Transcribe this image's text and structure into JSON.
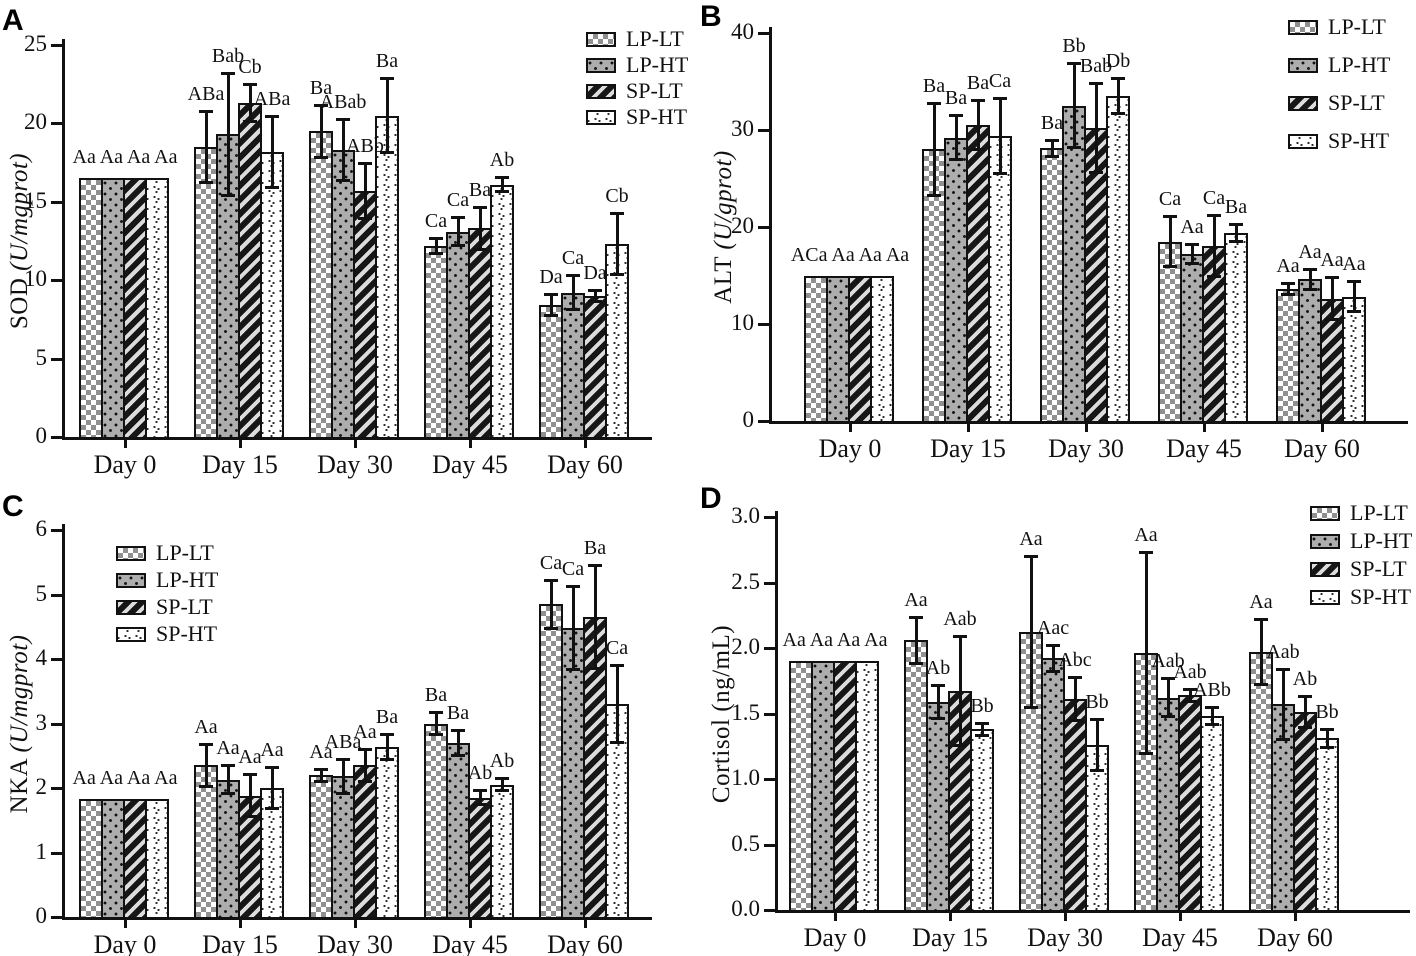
{
  "palette": {
    "outline": "#111111",
    "checker_gray": "#909090",
    "dot_fill_gray": "#adadad",
    "stripe_light": "#dcdcdc",
    "stripe_dark": "#161616",
    "background": "#ffffff"
  },
  "chart_data": [
    {
      "panel": "A",
      "type": "bar",
      "ylabel": "SOD",
      "ylabel_unit": "(U/mgprot)",
      "ylabel_unit_italic": true,
      "ylim": [
        0,
        25
      ],
      "yticks": [
        0,
        5,
        10,
        15,
        20,
        25
      ],
      "ytick_labels": [
        "0",
        "5",
        "10",
        "15",
        "20",
        "25"
      ],
      "categories": [
        "Day 0",
        "Day 15",
        "Day 30",
        "Day 45",
        "Day 60"
      ],
      "legend": [
        "LP-LT",
        "LP-HT",
        "SP-LT",
        "SP-HT"
      ],
      "legend_position": "top-right-inside",
      "grid": false,
      "error_bars": "capped, symmetric",
      "series": [
        {
          "name": "LP-LT",
          "pattern": "checker",
          "values": [
            16.5,
            18.5,
            19.5,
            12.2,
            8.4
          ],
          "errors": [
            0,
            2.3,
            1.7,
            0.5,
            0.7
          ],
          "sig_labels": [
            "Aa",
            "ABa",
            "Ba",
            "Ca",
            "Da"
          ]
        },
        {
          "name": "LP-HT",
          "pattern": "dots",
          "values": [
            16.5,
            19.3,
            18.3,
            13.1,
            9.2
          ],
          "errors": [
            0,
            3.9,
            2.0,
            0.9,
            1.1
          ],
          "sig_labels": [
            "Aa",
            "Bab",
            "ABab",
            "Ca",
            "Ca"
          ]
        },
        {
          "name": "SP-LT",
          "pattern": "stripes",
          "values": [
            16.5,
            21.3,
            15.7,
            13.3,
            9.0
          ],
          "errors": [
            0,
            1.2,
            1.8,
            1.4,
            0.4
          ],
          "sig_labels": [
            "Aa",
            "Cb",
            "ABb",
            "Ba",
            "Da"
          ]
        },
        {
          "name": "SP-HT",
          "pattern": "speckle",
          "values": [
            16.5,
            18.2,
            20.5,
            16.1,
            12.3
          ],
          "errors": [
            0,
            2.3,
            2.4,
            0.5,
            2.0
          ],
          "sig_labels": [
            "Aa",
            "ABa",
            "Ba",
            "Ab",
            "Cb"
          ]
        }
      ]
    },
    {
      "panel": "B",
      "type": "bar",
      "ylabel": "ALT",
      "ylabel_unit": "(U/gprot)",
      "ylabel_unit_italic": true,
      "ylim": [
        0,
        40
      ],
      "yticks": [
        0,
        10,
        20,
        30,
        40
      ],
      "ytick_labels": [
        "0",
        "10",
        "20",
        "30",
        "40"
      ],
      "categories": [
        "Day 0",
        "Day 15",
        "Day 30",
        "Day 45",
        "Day 60"
      ],
      "legend": [
        "LP-LT",
        "LP-HT",
        "SP-LT",
        "SP-HT"
      ],
      "legend_position": "top-right-outside",
      "grid": false,
      "error_bars": "capped, symmetric",
      "series": [
        {
          "name": "LP-LT",
          "pattern": "checker",
          "values": [
            14.9,
            28.0,
            28.1,
            18.5,
            13.6
          ],
          "errors": [
            0,
            4.8,
            0.9,
            2.6,
            0.6
          ],
          "sig_labels": [
            "ACa",
            "Ba",
            "Ba",
            "Ca",
            "Aa"
          ]
        },
        {
          "name": "LP-HT",
          "pattern": "dots",
          "values": [
            14.9,
            29.2,
            32.5,
            17.2,
            14.6
          ],
          "errors": [
            0,
            2.3,
            4.4,
            1.0,
            1.1
          ],
          "sig_labels": [
            "Aa",
            "Ba",
            "Bb",
            "Aa",
            "Aa"
          ]
        },
        {
          "name": "SP-LT",
          "pattern": "stripes",
          "values": [
            14.9,
            30.5,
            30.2,
            18.0,
            12.6
          ],
          "errors": [
            0,
            2.6,
            4.6,
            3.2,
            2.2
          ],
          "sig_labels": [
            "Aa",
            "Ba",
            "Bab",
            "Ca",
            "Aa"
          ]
        },
        {
          "name": "SP-HT",
          "pattern": "speckle",
          "values": [
            14.9,
            29.4,
            33.5,
            19.4,
            12.8
          ],
          "errors": [
            0,
            3.9,
            1.9,
            0.9,
            1.6
          ],
          "sig_labels": [
            "Aa",
            "Ca",
            "Db",
            "Ba",
            "Aa"
          ]
        }
      ]
    },
    {
      "panel": "C",
      "type": "bar",
      "ylabel": "NKA",
      "ylabel_unit": "(U/mgprot)",
      "ylabel_unit_italic": true,
      "ylim": [
        0,
        6
      ],
      "yticks": [
        0,
        1,
        2,
        3,
        4,
        5,
        6
      ],
      "ytick_labels": [
        "0",
        "1",
        "2",
        "3",
        "4",
        "5",
        "6"
      ],
      "categories": [
        "Day 0",
        "Day 15",
        "Day 30",
        "Day 45",
        "Day 60"
      ],
      "legend": [
        "LP-LT",
        "LP-HT",
        "SP-LT",
        "SP-HT"
      ],
      "legend_position": "top-left-inside",
      "grid": false,
      "error_bars": "capped, symmetric",
      "series": [
        {
          "name": "LP-LT",
          "pattern": "checker",
          "values": [
            1.83,
            2.35,
            2.2,
            3.0,
            4.85
          ],
          "errors": [
            0,
            0.33,
            0.1,
            0.18,
            0.38
          ],
          "sig_labels": [
            "Aa",
            "Aa",
            "Aa",
            "Ba",
            "Ca"
          ]
        },
        {
          "name": "LP-HT",
          "pattern": "dots",
          "values": [
            1.83,
            2.13,
            2.18,
            2.7,
            4.48
          ],
          "errors": [
            0,
            0.22,
            0.27,
            0.2,
            0.65
          ],
          "sig_labels": [
            "Aa",
            "Aa",
            "ABa",
            "Ba",
            "Ca"
          ]
        },
        {
          "name": "SP-LT",
          "pattern": "stripes",
          "values": [
            1.83,
            1.88,
            2.35,
            1.85,
            4.65
          ],
          "errors": [
            0,
            0.33,
            0.25,
            0.12,
            0.8
          ],
          "sig_labels": [
            "Aa",
            "Aa",
            "Aa",
            "Ab",
            "Ba"
          ]
        },
        {
          "name": "SP-HT",
          "pattern": "speckle",
          "values": [
            1.83,
            2.0,
            2.63,
            2.05,
            3.3
          ],
          "errors": [
            0,
            0.32,
            0.2,
            0.1,
            0.6
          ],
          "sig_labels": [
            "Aa",
            "Aa",
            "Ba",
            "Ab",
            "Ca"
          ]
        }
      ]
    },
    {
      "panel": "D",
      "type": "bar",
      "ylabel": "Cortisol",
      "ylabel_unit": "(ng/mL)",
      "ylabel_unit_italic": false,
      "ylim": [
        0,
        3
      ],
      "yticks": [
        0,
        0.5,
        1.0,
        1.5,
        2.0,
        2.5,
        3.0
      ],
      "ytick_labels": [
        "0.0",
        "0.5",
        "1.0",
        "1.5",
        "2.0",
        "2.5",
        "3.0"
      ],
      "categories": [
        "Day 0",
        "Day 15",
        "Day 30",
        "Day 45",
        "Day 60"
      ],
      "legend": [
        "LP-LT",
        "LP-HT",
        "SP-LT",
        "SP-HT"
      ],
      "legend_position": "top-right-outside",
      "grid": false,
      "error_bars": "capped, symmetric",
      "series": [
        {
          "name": "LP-LT",
          "pattern": "checker",
          "values": [
            1.9,
            2.06,
            2.12,
            1.96,
            1.97
          ],
          "errors": [
            0,
            0.18,
            0.58,
            0.77,
            0.25
          ],
          "sig_labels": [
            "Aa",
            "Aa",
            "Aa",
            "Aa",
            "Aa"
          ]
        },
        {
          "name": "LP-HT",
          "pattern": "dots",
          "values": [
            1.9,
            1.59,
            1.92,
            1.62,
            1.57
          ],
          "errors": [
            0,
            0.13,
            0.1,
            0.15,
            0.27
          ],
          "sig_labels": [
            "Aa",
            "Ab",
            "Aac",
            "Aab",
            "Aab"
          ]
        },
        {
          "name": "SP-LT",
          "pattern": "stripes",
          "values": [
            1.9,
            1.67,
            1.61,
            1.64,
            1.51
          ],
          "errors": [
            0,
            0.42,
            0.17,
            0.05,
            0.12
          ],
          "sig_labels": [
            "Aa",
            "Aab",
            "Abc",
            "Aab",
            "Ab"
          ]
        },
        {
          "name": "SP-HT",
          "pattern": "speckle",
          "values": [
            1.9,
            1.38,
            1.26,
            1.48,
            1.31
          ],
          "errors": [
            0,
            0.05,
            0.2,
            0.07,
            0.07
          ],
          "sig_labels": [
            "Aa",
            "Bb",
            "Bb",
            "ABb",
            "Bb"
          ]
        }
      ]
    }
  ]
}
